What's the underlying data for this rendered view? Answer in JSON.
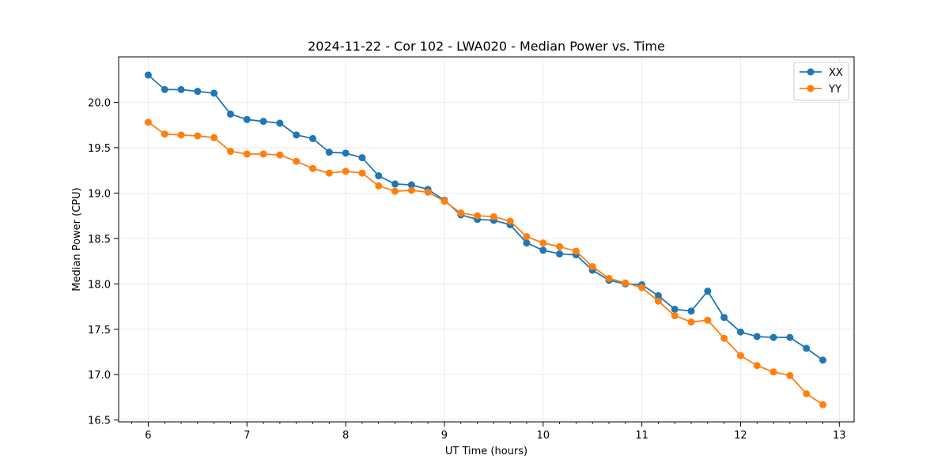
{
  "chart_data": {
    "type": "line",
    "title": "2024-11-22 - Cor 102 - LWA020 - Median Power vs. Time",
    "xlabel": "UT Time (hours)",
    "ylabel": "Median Power (CPU)",
    "xlim": [
      5.7,
      13.15
    ],
    "ylim": [
      16.48,
      20.5
    ],
    "xticks": [
      6,
      7,
      8,
      9,
      10,
      11,
      12,
      13
    ],
    "yticks": [
      16.5,
      17.0,
      17.5,
      18.0,
      18.5,
      19.0,
      19.5,
      20.0
    ],
    "ytick_labels": [
      "16.5",
      "17.0",
      "17.5",
      "18.0",
      "18.5",
      "19.0",
      "19.5",
      "20.0"
    ],
    "grid": true,
    "legend_position": "top-right",
    "x": [
      6.0,
      6.1667,
      6.3333,
      6.5,
      6.6667,
      6.8333,
      7.0,
      7.1667,
      7.3333,
      7.5,
      7.6667,
      7.8333,
      8.0,
      8.1667,
      8.3333,
      8.5,
      8.6667,
      8.8333,
      9.0,
      9.1667,
      9.3333,
      9.5,
      9.6667,
      9.8333,
      10.0,
      10.1667,
      10.3333,
      10.5,
      10.6667,
      10.8333,
      11.0,
      11.1667,
      11.3333,
      11.5,
      11.6667,
      11.8333,
      12.0,
      12.1667,
      12.3333,
      12.5,
      12.6667,
      12.8333
    ],
    "series": [
      {
        "name": "XX",
        "color": "#1f77b4",
        "values": [
          20.3,
          20.14,
          20.14,
          20.12,
          20.1,
          19.87,
          19.81,
          19.79,
          19.77,
          19.64,
          19.6,
          19.45,
          19.44,
          19.39,
          19.19,
          19.1,
          19.09,
          19.04,
          18.92,
          18.76,
          18.71,
          18.7,
          18.65,
          18.45,
          18.37,
          18.33,
          18.32,
          18.15,
          18.04,
          18.0,
          17.99,
          17.87,
          17.72,
          17.7,
          17.92,
          17.63,
          17.47,
          17.42,
          17.41,
          17.41,
          17.29,
          17.16
        ]
      },
      {
        "name": "YY",
        "color": "#ff7f0e",
        "values": [
          19.78,
          19.65,
          19.64,
          19.63,
          19.61,
          19.46,
          19.43,
          19.43,
          19.42,
          19.35,
          19.27,
          19.22,
          19.24,
          19.22,
          19.08,
          19.02,
          19.03,
          19.01,
          18.91,
          18.78,
          18.75,
          18.74,
          18.69,
          18.52,
          18.45,
          18.41,
          18.36,
          18.19,
          18.06,
          18.01,
          17.96,
          17.81,
          17.65,
          17.58,
          17.6,
          17.4,
          17.21,
          17.1,
          17.03,
          16.99,
          16.79,
          16.67
        ]
      }
    ]
  }
}
